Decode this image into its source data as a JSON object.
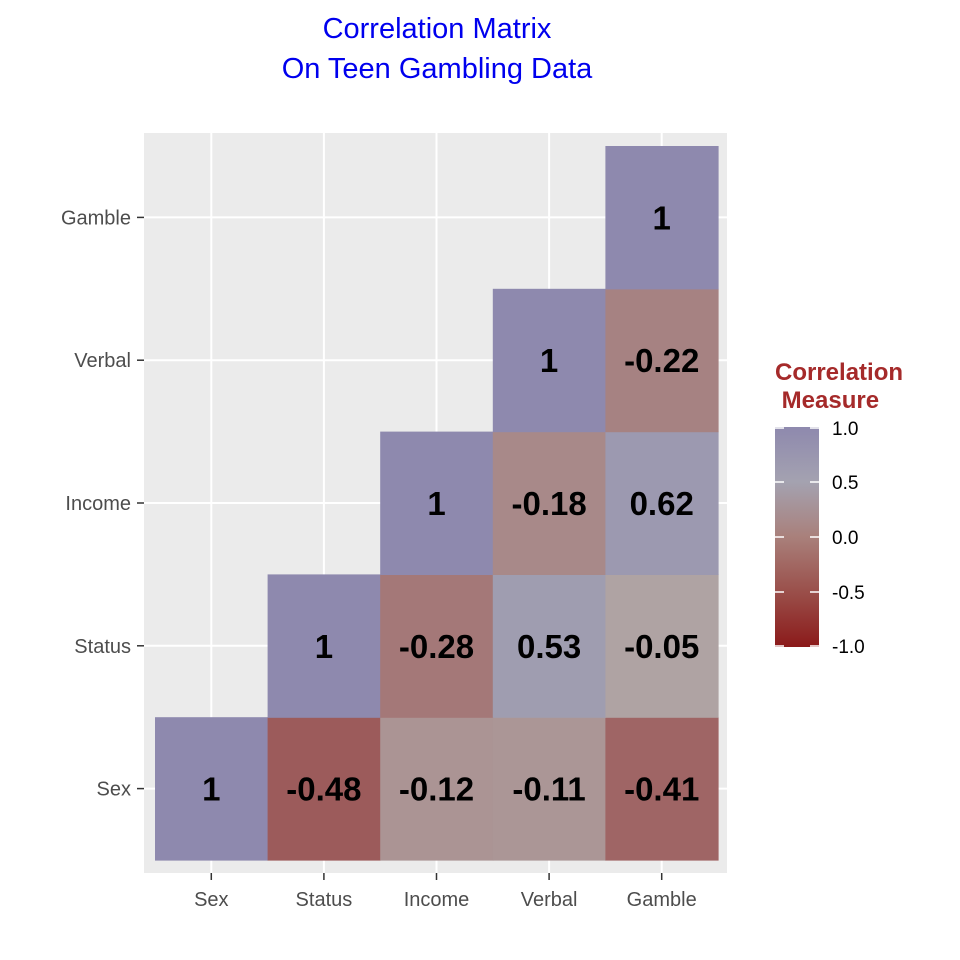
{
  "chart_data": {
    "type": "heatmap",
    "title": [
      "Correlation Matrix",
      "On Teen Gambling Data"
    ],
    "x_categories": [
      "Sex",
      "Status",
      "Income",
      "Verbal",
      "Gamble"
    ],
    "y_categories": [
      "Sex",
      "Status",
      "Income",
      "Verbal",
      "Gamble"
    ],
    "cells": [
      {
        "x": "Sex",
        "y": "Sex",
        "value": 1,
        "label": "1"
      },
      {
        "x": "Status",
        "y": "Sex",
        "value": -0.48,
        "label": "-0.48"
      },
      {
        "x": "Income",
        "y": "Sex",
        "value": -0.12,
        "label": "-0.12"
      },
      {
        "x": "Verbal",
        "y": "Sex",
        "value": -0.11,
        "label": "-0.11"
      },
      {
        "x": "Gamble",
        "y": "Sex",
        "value": -0.41,
        "label": "-0.41"
      },
      {
        "x": "Status",
        "y": "Status",
        "value": 1,
        "label": "1"
      },
      {
        "x": "Income",
        "y": "Status",
        "value": -0.28,
        "label": "-0.28"
      },
      {
        "x": "Verbal",
        "y": "Status",
        "value": 0.53,
        "label": "0.53"
      },
      {
        "x": "Gamble",
        "y": "Status",
        "value": -0.05,
        "label": "-0.05"
      },
      {
        "x": "Income",
        "y": "Income",
        "value": 1,
        "label": "1"
      },
      {
        "x": "Verbal",
        "y": "Income",
        "value": -0.18,
        "label": "-0.18"
      },
      {
        "x": "Gamble",
        "y": "Income",
        "value": 0.62,
        "label": "0.62"
      },
      {
        "x": "Verbal",
        "y": "Verbal",
        "value": 1,
        "label": "1"
      },
      {
        "x": "Gamble",
        "y": "Verbal",
        "value": -0.22,
        "label": "-0.22"
      },
      {
        "x": "Gamble",
        "y": "Gamble",
        "value": 1,
        "label": "1"
      }
    ],
    "legend": {
      "title": [
        "Correlation",
        " Measure"
      ],
      "ticks": [
        1.0,
        0.5,
        0.0,
        -0.5,
        -1.0
      ],
      "tick_labels": [
        "1.0",
        "0.5",
        "0.0",
        "-0.5",
        "-1.0"
      ],
      "limits": [
        -1,
        1
      ],
      "placement": "right"
    },
    "colors": {
      "low": "#8b1a1a",
      "mid": "#b3b3b3",
      "high": "#8e89ae",
      "title": "#0000ee",
      "legend_title": "#a52a2a",
      "panel_background": "#ebebeb",
      "grid": "#ffffff"
    },
    "grid": true
  }
}
